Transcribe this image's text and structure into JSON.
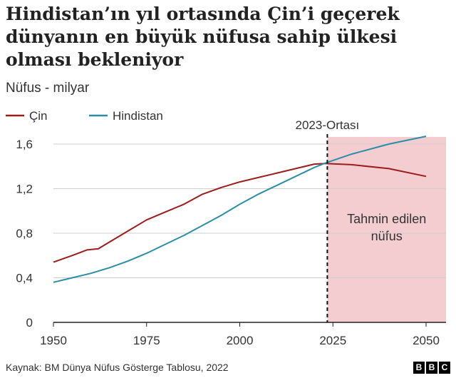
{
  "title": "Hindistan’ın yıl ortasında Çin’i geçerek dünyanın en büyük nüfusa sahip ülkesi olması bekleniyor",
  "subtitle": "Nüfus - milyar",
  "source": "Kaynak: BM Dünya Nüfus Gösterge Tablosu, 2022",
  "logo": [
    "B",
    "B",
    "C"
  ],
  "chart_data": {
    "type": "line",
    "ylim": [
      0,
      1.65
    ],
    "xlim": [
      1950,
      2050
    ],
    "x_ticks": [
      1950,
      1975,
      2000,
      2025,
      2050
    ],
    "y_ticks": [
      0,
      0.4,
      0.8,
      1.2,
      1.6
    ],
    "y_tick_labels": [
      "0",
      "0,4",
      "0,8",
      "1,2",
      "1,6"
    ],
    "grid": "horizontal",
    "legend": "top-left",
    "series": [
      {
        "name": "Çin",
        "color": "#9e1c1c",
        "x": [
          1950,
          1955,
          1959,
          1962,
          1965,
          1970,
          1975,
          1980,
          1985,
          1990,
          1995,
          2000,
          2005,
          2010,
          2015,
          2020,
          2023,
          2030,
          2040,
          2050
        ],
        "y": [
          0.54,
          0.6,
          0.65,
          0.66,
          0.72,
          0.82,
          0.92,
          0.99,
          1.06,
          1.15,
          1.21,
          1.26,
          1.3,
          1.34,
          1.38,
          1.42,
          1.425,
          1.415,
          1.38,
          1.31
        ]
      },
      {
        "name": "Hindistan",
        "color": "#2a8fa6",
        "x": [
          1950,
          1955,
          1960,
          1965,
          1970,
          1975,
          1980,
          1985,
          1990,
          1995,
          2000,
          2005,
          2010,
          2015,
          2020,
          2023,
          2030,
          2040,
          2050
        ],
        "y": [
          0.36,
          0.4,
          0.44,
          0.49,
          0.55,
          0.62,
          0.7,
          0.78,
          0.87,
          0.96,
          1.06,
          1.15,
          1.23,
          1.31,
          1.39,
          1.43,
          1.51,
          1.6,
          1.67
        ]
      }
    ],
    "marker_line": {
      "x": 2023.5,
      "label": "2023-Ortası"
    },
    "shaded_region": {
      "x_from": 2023.5,
      "x_to": 2055,
      "label_lines": [
        "Tahmin edilen",
        "nüfus"
      ],
      "color": "#f3cdd0"
    }
  }
}
